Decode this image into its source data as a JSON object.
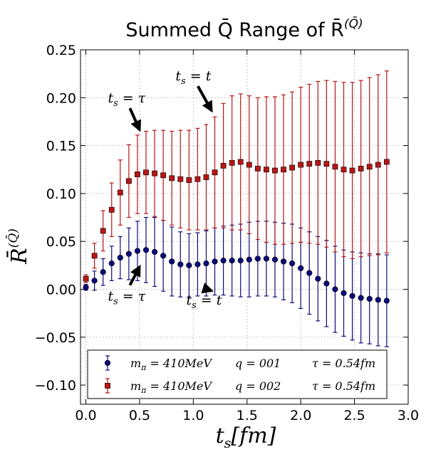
{
  "chart_data": {
    "type": "scatter",
    "title": "Summed Q̄ Range of R̄",
    "title_sup": "(Q̄)",
    "xlabel": "t",
    "xlabel_sub": "s",
    "xlabel_tail": "[fm]",
    "ylabel": "R̄",
    "ylabel_sup": "(Q̄)",
    "xlim": [
      -0.05,
      3.0
    ],
    "ylim": [
      -0.12,
      0.25
    ],
    "grid": true,
    "legend_position": "lower-center",
    "x_ticks": [
      0.0,
      0.5,
      1.0,
      1.5,
      2.0,
      2.5,
      3.0
    ],
    "x_tick_labels": [
      "0.0",
      "0.5",
      "1.0",
      "1.5",
      "2.0",
      "2.5",
      "3.0"
    ],
    "y_ticks": [
      -0.1,
      -0.05,
      0.0,
      0.05,
      0.1,
      0.15,
      0.2,
      0.25
    ],
    "y_tick_labels": [
      "−0.10",
      "−0.05",
      "0.00",
      "0.05",
      "0.10",
      "0.15",
      "0.20",
      "0.25"
    ],
    "series": [
      {
        "name": "q = 001",
        "legend_mass": "m = 410MeV",
        "legend_q": "q = 001",
        "legend_tau": "τ = 0.54fm",
        "color": "#0b0b7a",
        "marker": "circle",
        "x": [
          0.0,
          0.08,
          0.16,
          0.24,
          0.32,
          0.4,
          0.48,
          0.56,
          0.64,
          0.72,
          0.8,
          0.88,
          0.96,
          1.04,
          1.12,
          1.2,
          1.28,
          1.36,
          1.44,
          1.52,
          1.6,
          1.68,
          1.76,
          1.84,
          1.92,
          2.0,
          2.08,
          2.16,
          2.24,
          2.32,
          2.4,
          2.48,
          2.56,
          2.64,
          2.72,
          2.8
        ],
        "y": [
          0.002,
          0.009,
          0.018,
          0.027,
          0.033,
          0.037,
          0.04,
          0.041,
          0.039,
          0.035,
          0.029,
          0.026,
          0.025,
          0.026,
          0.027,
          0.029,
          0.03,
          0.03,
          0.03,
          0.031,
          0.032,
          0.032,
          0.031,
          0.029,
          0.027,
          0.022,
          0.017,
          0.011,
          0.006,
          0.0,
          -0.004,
          -0.007,
          -0.009,
          -0.01,
          -0.011,
          -0.012
        ],
        "err": [
          0.003,
          0.01,
          0.014,
          0.018,
          0.022,
          0.027,
          0.031,
          0.034,
          0.036,
          0.037,
          0.036,
          0.034,
          0.033,
          0.033,
          0.034,
          0.035,
          0.036,
          0.037,
          0.038,
          0.039,
          0.039,
          0.039,
          0.039,
          0.04,
          0.041,
          0.042,
          0.043,
          0.044,
          0.045,
          0.045,
          0.045,
          0.046,
          0.047,
          0.047,
          0.048,
          0.048
        ]
      },
      {
        "name": "q = 002",
        "legend_mass": "m = 410MeV",
        "legend_q": "q = 002",
        "legend_tau": "τ = 0.54fm",
        "color": "#b81515",
        "marker": "square",
        "x": [
          0.0,
          0.08,
          0.16,
          0.24,
          0.32,
          0.4,
          0.48,
          0.56,
          0.64,
          0.72,
          0.8,
          0.88,
          0.96,
          1.04,
          1.12,
          1.2,
          1.28,
          1.36,
          1.44,
          1.52,
          1.6,
          1.68,
          1.76,
          1.84,
          1.92,
          2.0,
          2.08,
          2.16,
          2.24,
          2.32,
          2.4,
          2.48,
          2.56,
          2.64,
          2.72,
          2.8
        ],
        "y": [
          0.011,
          0.035,
          0.061,
          0.083,
          0.101,
          0.113,
          0.12,
          0.122,
          0.121,
          0.119,
          0.116,
          0.115,
          0.114,
          0.115,
          0.117,
          0.122,
          0.129,
          0.132,
          0.133,
          0.13,
          0.126,
          0.125,
          0.124,
          0.125,
          0.127,
          0.13,
          0.131,
          0.132,
          0.131,
          0.128,
          0.125,
          0.124,
          0.126,
          0.128,
          0.13,
          0.133
        ],
        "err": [
          0.004,
          0.013,
          0.021,
          0.028,
          0.034,
          0.038,
          0.041,
          0.043,
          0.045,
          0.047,
          0.049,
          0.051,
          0.052,
          0.053,
          0.055,
          0.058,
          0.065,
          0.07,
          0.071,
          0.072,
          0.074,
          0.076,
          0.077,
          0.078,
          0.079,
          0.081,
          0.083,
          0.085,
          0.087,
          0.089,
          0.091,
          0.092,
          0.092,
          0.093,
          0.094,
          0.095
        ]
      }
    ],
    "annotations": [
      {
        "label": "τ",
        "x": 0.5,
        "y": 0.165,
        "text_x": 0.38,
        "text_y": 0.195
      },
      {
        "label": "t",
        "x": 1.17,
        "y": 0.185,
        "text_x": 1.0,
        "text_y": 0.218
      },
      {
        "label": "τ",
        "x": 0.5,
        "y": 0.025,
        "text_x": 0.38,
        "text_y": -0.012
      },
      {
        "label": "t",
        "x": 1.17,
        "y": 0.0,
        "text_x": 1.1,
        "text_y": -0.016
      }
    ]
  }
}
